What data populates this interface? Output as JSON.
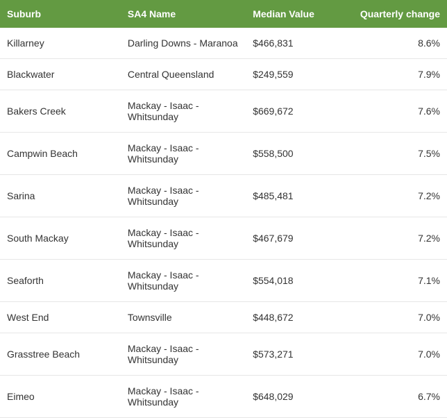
{
  "table": {
    "header_bg": "#639a42",
    "header_text_color": "#ffffff",
    "row_border_color": "#e6e6e6",
    "text_color": "#333333",
    "font_size": 14,
    "columns": [
      {
        "label": "Suburb",
        "align": "left"
      },
      {
        "label": "SA4 Name",
        "align": "left"
      },
      {
        "label": "Median Value",
        "align": "left"
      },
      {
        "label": "Quarterly change",
        "align": "right"
      }
    ],
    "rows": [
      {
        "suburb": "Killarney",
        "sa4": "Darling Downs - Maranoa",
        "median": "$466,831",
        "change": "8.6%"
      },
      {
        "suburb": "Blackwater",
        "sa4": "Central Queensland",
        "median": "$249,559",
        "change": "7.9%"
      },
      {
        "suburb": "Bakers Creek",
        "sa4": "Mackay - Isaac - Whitsunday",
        "median": "$669,672",
        "change": "7.6%"
      },
      {
        "suburb": "Campwin Beach",
        "sa4": "Mackay - Isaac - Whitsunday",
        "median": "$558,500",
        "change": "7.5%"
      },
      {
        "suburb": "Sarina",
        "sa4": "Mackay - Isaac - Whitsunday",
        "median": "$485,481",
        "change": "7.2%"
      },
      {
        "suburb": "South Mackay",
        "sa4": "Mackay - Isaac - Whitsunday",
        "median": "$467,679",
        "change": "7.2%"
      },
      {
        "suburb": "Seaforth",
        "sa4": "Mackay - Isaac - Whitsunday",
        "median": "$554,018",
        "change": "7.1%"
      },
      {
        "suburb": "West End",
        "sa4": "Townsville",
        "median": "$448,672",
        "change": "7.0%"
      },
      {
        "suburb": "Grasstree Beach",
        "sa4": "Mackay - Isaac - Whitsunday",
        "median": "$573,271",
        "change": "7.0%"
      },
      {
        "suburb": "Eimeo",
        "sa4": "Mackay - Isaac - Whitsunday",
        "median": "$648,029",
        "change": "6.7%"
      }
    ]
  }
}
